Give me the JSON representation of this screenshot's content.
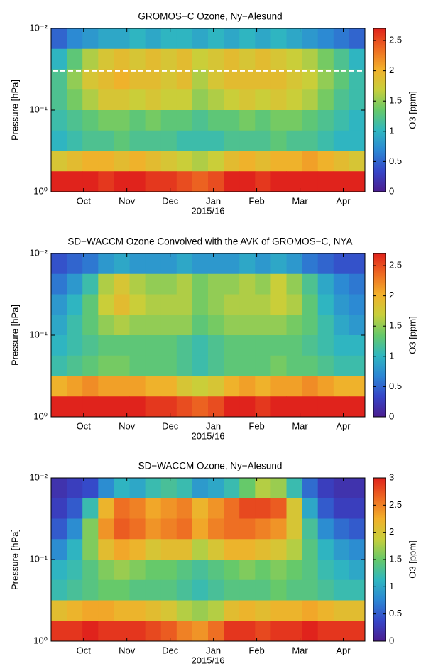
{
  "chart_data": [
    {
      "type": "heatmap",
      "title": "GROMOS−C Ozone, Ny−Alesund",
      "xlabel": "2015/16",
      "ylabel": "Pressure [hPa]",
      "categories": [
        "Oct",
        "Nov",
        "Dec",
        "Jan",
        "Feb",
        "Mar",
        "Apr"
      ],
      "ylim": [
        0.01,
        1
      ],
      "log_y": true,
      "yticks": [
        {
          "value": 0.01,
          "label": "10⁻²"
        },
        {
          "value": 0.1,
          "label": "10⁻¹"
        },
        {
          "value": 1,
          "label": "10⁰"
        }
      ],
      "hline": 0.033,
      "hline_color": "#ffffff",
      "colormap": [
        "#4b1d8f",
        "#3646c8",
        "#2c86d4",
        "#2fb7c0",
        "#66c96a",
        "#c8cf3a",
        "#f2b02a",
        "#ee6a22",
        "#e0231c"
      ],
      "colorbar": {
        "label": "O3 [ppm]",
        "lim": [
          0,
          2.7
        ],
        "ticks": [
          0,
          0.5,
          1,
          1.5,
          2,
          2.5
        ]
      },
      "z": [
        [
          0.5,
          0.7,
          0.8,
          0.9,
          0.9,
          1.0,
          0.9,
          1.0,
          1.0,
          0.9,
          1.0,
          0.9,
          1.0,
          0.9,
          1.0,
          0.9,
          0.8,
          0.7,
          0.6,
          0.5
        ],
        [
          1.0,
          1.3,
          1.6,
          1.8,
          1.9,
          1.8,
          1.9,
          1.8,
          1.9,
          1.7,
          1.8,
          1.9,
          1.8,
          1.9,
          1.8,
          1.7,
          1.6,
          1.4,
          1.2,
          1.0
        ],
        [
          1.2,
          1.5,
          1.8,
          1.9,
          2.0,
          1.9,
          1.9,
          1.8,
          1.9,
          1.6,
          1.8,
          1.9,
          1.9,
          1.9,
          1.9,
          1.8,
          1.7,
          1.5,
          1.3,
          1.1
        ],
        [
          1.2,
          1.4,
          1.6,
          1.8,
          1.8,
          1.7,
          1.8,
          1.7,
          1.7,
          1.5,
          1.6,
          1.7,
          1.8,
          1.7,
          1.8,
          1.7,
          1.6,
          1.4,
          1.2,
          1.1
        ],
        [
          1.1,
          1.2,
          1.3,
          1.4,
          1.4,
          1.3,
          1.4,
          1.3,
          1.3,
          1.2,
          1.3,
          1.3,
          1.4,
          1.3,
          1.4,
          1.4,
          1.3,
          1.2,
          1.1,
          1.0
        ],
        [
          1.0,
          1.1,
          1.2,
          1.2,
          1.3,
          1.2,
          1.2,
          1.2,
          1.1,
          1.1,
          1.1,
          1.2,
          1.2,
          1.2,
          1.3,
          1.2,
          1.2,
          1.1,
          1.0,
          1.0
        ],
        [
          1.8,
          1.9,
          2.0,
          2.0,
          1.9,
          2.0,
          1.9,
          1.8,
          1.7,
          1.6,
          1.7,
          1.9,
          2.0,
          1.9,
          2.0,
          2.0,
          2.1,
          2.0,
          1.9,
          1.8
        ],
        [
          2.7,
          2.7,
          2.7,
          2.6,
          2.7,
          2.7,
          2.6,
          2.6,
          2.5,
          2.4,
          2.5,
          2.7,
          2.7,
          2.6,
          2.7,
          2.7,
          2.7,
          2.7,
          2.7,
          2.7
        ]
      ]
    },
    {
      "type": "heatmap",
      "title": "SD−WACCM Ozone Convolved with the AVK of GROMOS−C, NYA",
      "xlabel": "2015/16",
      "ylabel": "Pressure [hPa]",
      "categories": [
        "Oct",
        "Nov",
        "Dec",
        "Jan",
        "Feb",
        "Mar",
        "Apr"
      ],
      "ylim": [
        0.01,
        1
      ],
      "log_y": true,
      "yticks": [
        {
          "value": 0.01,
          "label": "10⁻²"
        },
        {
          "value": 0.1,
          "label": "10⁻¹"
        },
        {
          "value": 1,
          "label": "10⁰"
        }
      ],
      "colormap": [
        "#4b1d8f",
        "#3646c8",
        "#2c86d4",
        "#2fb7c0",
        "#66c96a",
        "#c8cf3a",
        "#f2b02a",
        "#ee6a22",
        "#e0231c"
      ],
      "colorbar": {
        "label": "O3 [ppm]",
        "lim": [
          0,
          2.7
        ],
        "ticks": [
          0,
          0.5,
          1,
          1.5,
          2,
          2.5
        ]
      },
      "z": [
        [
          0.4,
          0.5,
          0.6,
          0.8,
          0.9,
          0.8,
          0.8,
          0.8,
          0.9,
          0.8,
          0.8,
          0.8,
          0.9,
          0.8,
          0.9,
          0.8,
          0.6,
          0.5,
          0.4,
          0.4
        ],
        [
          0.6,
          0.8,
          1.1,
          1.6,
          1.8,
          1.6,
          1.5,
          1.5,
          1.6,
          1.4,
          1.5,
          1.5,
          1.6,
          1.5,
          1.7,
          1.5,
          1.2,
          0.9,
          0.7,
          0.6
        ],
        [
          0.8,
          1.0,
          1.3,
          1.7,
          1.9,
          1.7,
          1.6,
          1.6,
          1.6,
          1.4,
          1.5,
          1.6,
          1.6,
          1.6,
          1.7,
          1.6,
          1.3,
          1.0,
          0.8,
          0.7
        ],
        [
          0.9,
          1.1,
          1.3,
          1.5,
          1.6,
          1.5,
          1.5,
          1.5,
          1.5,
          1.3,
          1.4,
          1.5,
          1.5,
          1.5,
          1.5,
          1.4,
          1.3,
          1.1,
          0.9,
          0.8
        ],
        [
          1.0,
          1.1,
          1.2,
          1.3,
          1.3,
          1.3,
          1.3,
          1.3,
          1.2,
          1.1,
          1.2,
          1.3,
          1.3,
          1.3,
          1.3,
          1.3,
          1.2,
          1.1,
          1.0,
          1.0
        ],
        [
          1.1,
          1.2,
          1.3,
          1.4,
          1.4,
          1.3,
          1.3,
          1.3,
          1.2,
          1.1,
          1.2,
          1.3,
          1.3,
          1.3,
          1.4,
          1.3,
          1.3,
          1.2,
          1.1,
          1.1
        ],
        [
          2.0,
          2.1,
          2.2,
          2.1,
          2.1,
          2.1,
          2.0,
          2.0,
          1.8,
          1.7,
          1.8,
          2.0,
          2.1,
          2.0,
          2.1,
          2.1,
          2.2,
          2.1,
          2.0,
          2.0
        ],
        [
          2.7,
          2.7,
          2.7,
          2.7,
          2.7,
          2.7,
          2.6,
          2.6,
          2.5,
          2.4,
          2.5,
          2.7,
          2.7,
          2.6,
          2.7,
          2.7,
          2.7,
          2.7,
          2.7,
          2.7
        ]
      ]
    },
    {
      "type": "heatmap",
      "title": "SD−WACCM Ozone, Ny−Alesund",
      "xlabel": "2015/16",
      "ylabel": "Pressure [hPa]",
      "categories": [
        "Oct",
        "Nov",
        "Dec",
        "Jan",
        "Feb",
        "Mar",
        "Apr"
      ],
      "ylim": [
        0.01,
        1
      ],
      "log_y": true,
      "yticks": [
        {
          "value": 0.01,
          "label": "10⁻²"
        },
        {
          "value": 0.1,
          "label": "10⁻¹"
        },
        {
          "value": 1,
          "label": "10⁰"
        }
      ],
      "colormap": [
        "#4b1d8f",
        "#3646c8",
        "#2c86d4",
        "#2fb7c0",
        "#66c96a",
        "#c8cf3a",
        "#f2b02a",
        "#ee6a22",
        "#e0231c"
      ],
      "colorbar": {
        "label": "O3 [ppm]",
        "lim": [
          0,
          3
        ],
        "ticks": [
          0,
          0.5,
          1,
          1.5,
          2,
          2.5,
          3
        ]
      },
      "z": [
        [
          0.2,
          0.3,
          0.4,
          0.8,
          1.1,
          1.0,
          1.2,
          1.3,
          1.2,
          0.9,
          1.0,
          1.2,
          1.5,
          1.8,
          1.7,
          1.2,
          0.6,
          0.3,
          0.2,
          0.2
        ],
        [
          0.3,
          0.5,
          1.2,
          2.2,
          2.6,
          2.5,
          2.3,
          2.4,
          2.5,
          2.2,
          2.4,
          2.6,
          2.8,
          2.8,
          2.7,
          2.0,
          1.0,
          0.5,
          0.3,
          0.3
        ],
        [
          0.5,
          0.8,
          1.6,
          2.4,
          2.7,
          2.6,
          2.4,
          2.5,
          2.6,
          2.3,
          2.5,
          2.6,
          2.6,
          2.5,
          2.4,
          2.0,
          1.3,
          0.8,
          0.6,
          0.5
        ],
        [
          0.8,
          1.1,
          1.6,
          2.1,
          2.3,
          2.2,
          2.0,
          2.1,
          2.1,
          1.8,
          2.0,
          2.2,
          2.2,
          2.1,
          2.0,
          1.8,
          1.4,
          1.1,
          0.9,
          0.8
        ],
        [
          1.1,
          1.2,
          1.4,
          1.6,
          1.7,
          1.6,
          1.5,
          1.5,
          1.4,
          1.3,
          1.4,
          1.5,
          1.6,
          1.5,
          1.6,
          1.5,
          1.4,
          1.2,
          1.1,
          1.0
        ],
        [
          1.2,
          1.3,
          1.4,
          1.5,
          1.5,
          1.4,
          1.4,
          1.4,
          1.3,
          1.2,
          1.3,
          1.4,
          1.4,
          1.4,
          1.5,
          1.4,
          1.4,
          1.3,
          1.2,
          1.2
        ],
        [
          2.1,
          2.2,
          2.3,
          2.3,
          2.2,
          2.2,
          2.1,
          2.0,
          1.8,
          1.7,
          1.8,
          2.1,
          2.2,
          2.1,
          2.2,
          2.2,
          2.3,
          2.2,
          2.1,
          2.1
        ],
        [
          2.9,
          2.9,
          3.0,
          2.9,
          2.9,
          2.9,
          2.8,
          2.7,
          2.5,
          2.4,
          2.6,
          2.9,
          2.9,
          2.8,
          2.9,
          2.9,
          3.0,
          2.9,
          2.9,
          2.9
        ]
      ]
    }
  ]
}
